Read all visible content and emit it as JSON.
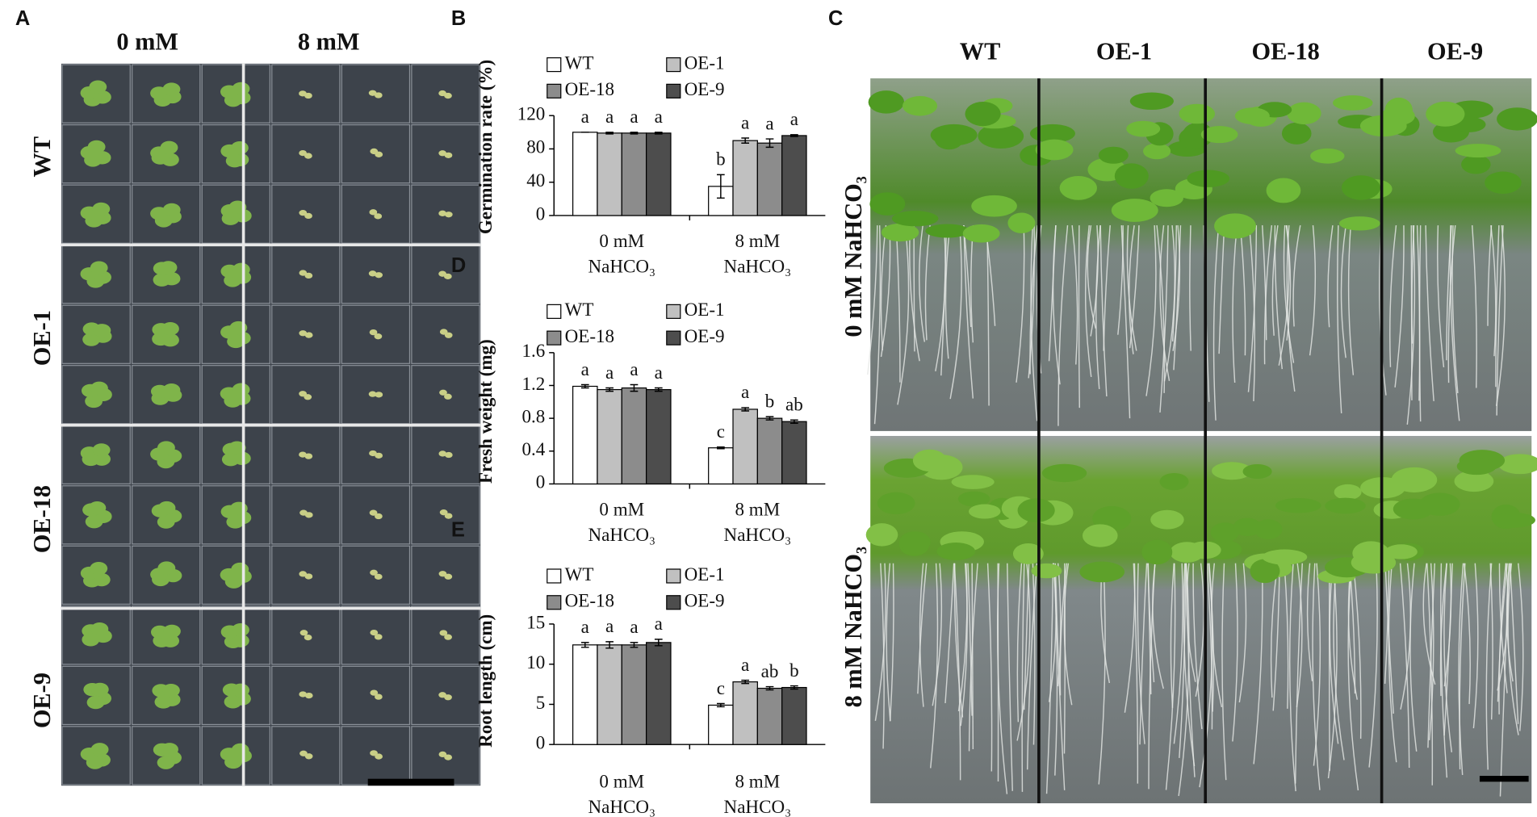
{
  "panels": {
    "A": {
      "label": "A",
      "columns": [
        "0 mM",
        "8 mM"
      ],
      "rows": [
        "WT",
        "OE-1",
        "OE-18",
        "OE-9"
      ]
    },
    "C": {
      "label": "C",
      "columns": [
        "WT",
        "OE-1",
        "OE-18",
        "OE-9"
      ],
      "rows": [
        "0 mM  NaHCO₃",
        "8 mM  NaHCO₃"
      ]
    }
  },
  "chart_data": [
    {
      "type": "bar",
      "panel": "B",
      "y_label": "Germination rate  (%)",
      "categories": [
        "0 mM NaHCO₃",
        "8 mM NaHCO₃"
      ],
      "ylim": [
        0,
        120
      ],
      "yticks": [
        0,
        40,
        80,
        120
      ],
      "series": [
        {
          "name": "WT",
          "color": "#ffffff",
          "values": [
            100,
            35
          ],
          "errors": [
            0,
            14
          ],
          "labels": [
            "a",
            "b"
          ]
        },
        {
          "name": "OE-1",
          "color": "#c0c0c0",
          "values": [
            99,
            90
          ],
          "errors": [
            1,
            3
          ],
          "labels": [
            "a",
            "a"
          ]
        },
        {
          "name": "OE-18",
          "color": "#8c8c8c",
          "values": [
            99,
            87
          ],
          "errors": [
            1,
            5
          ],
          "labels": [
            "a",
            "a"
          ]
        },
        {
          "name": "OE-9",
          "color": "#4d4d4d",
          "values": [
            99,
            96
          ],
          "errors": [
            1,
            1
          ],
          "labels": [
            "a",
            "a"
          ]
        }
      ]
    },
    {
      "type": "bar",
      "panel": "D",
      "y_label": "Fresh weight (mg)",
      "categories": [
        "0 mM NaHCO₃",
        "8 mM NaHCO₃"
      ],
      "ylim": [
        0,
        1.6
      ],
      "yticks": [
        0,
        0.4,
        0.8,
        1.2,
        1.6
      ],
      "series": [
        {
          "name": "WT",
          "color": "#ffffff",
          "values": [
            1.19,
            0.44
          ],
          "errors": [
            0.02,
            0.01
          ],
          "labels": [
            "a",
            "c"
          ]
        },
        {
          "name": "OE-1",
          "color": "#c0c0c0",
          "values": [
            1.15,
            0.91
          ],
          "errors": [
            0.02,
            0.02
          ],
          "labels": [
            "a",
            "a"
          ]
        },
        {
          "name": "OE-18",
          "color": "#8c8c8c",
          "values": [
            1.17,
            0.8
          ],
          "errors": [
            0.04,
            0.02
          ],
          "labels": [
            "a",
            "b"
          ]
        },
        {
          "name": "OE-9",
          "color": "#4d4d4d",
          "values": [
            1.15,
            0.76
          ],
          "errors": [
            0.02,
            0.02
          ],
          "labels": [
            "a",
            "ab"
          ]
        }
      ]
    },
    {
      "type": "bar",
      "panel": "E",
      "y_label": "Root length (cm)",
      "categories": [
        "0 mM NaHCO₃",
        "8 mM NaHCO₃"
      ],
      "ylim": [
        0,
        15
      ],
      "yticks": [
        0,
        5,
        10,
        15
      ],
      "series": [
        {
          "name": "WT",
          "color": "#ffffff",
          "values": [
            12.4,
            4.9
          ],
          "errors": [
            0.3,
            0.2
          ],
          "labels": [
            "a",
            "c"
          ]
        },
        {
          "name": "OE-1",
          "color": "#c0c0c0",
          "values": [
            12.4,
            7.8
          ],
          "errors": [
            0.4,
            0.2
          ],
          "labels": [
            "a",
            "a"
          ]
        },
        {
          "name": "OE-18",
          "color": "#8c8c8c",
          "values": [
            12.4,
            7.0
          ],
          "errors": [
            0.3,
            0.2
          ],
          "labels": [
            "a",
            "ab"
          ]
        },
        {
          "name": "OE-9",
          "color": "#4d4d4d",
          "values": [
            12.7,
            7.1
          ],
          "errors": [
            0.4,
            0.2
          ],
          "labels": [
            "a",
            "b"
          ]
        }
      ]
    }
  ]
}
